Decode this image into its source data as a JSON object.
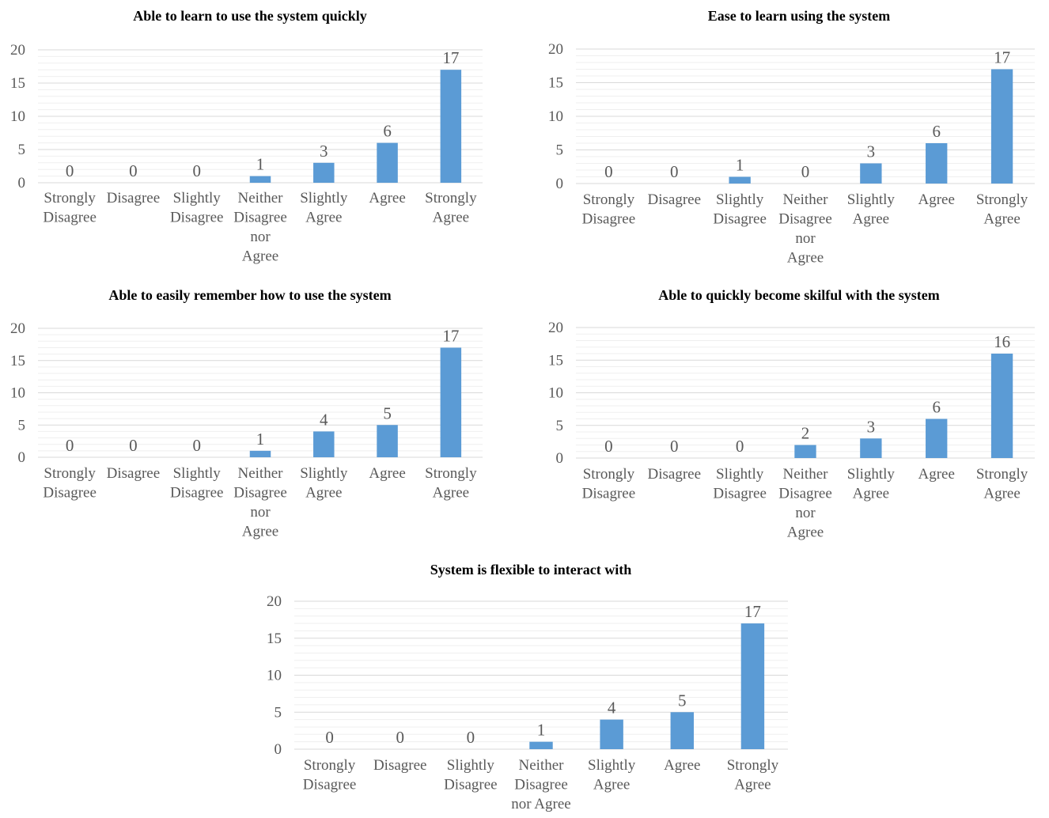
{
  "colors": {
    "bar": "#5b9bd5",
    "major_grid": "#d9d9d9",
    "minor_grid": "#efefef",
    "text": "#595959",
    "title": "#000000"
  },
  "chart_data": [
    {
      "type": "bar",
      "title": "Able to learn to use the system quickly",
      "categories": [
        [
          "Strongly",
          "Disagree"
        ],
        [
          "Disagree"
        ],
        [
          "Slightly",
          "Disagree"
        ],
        [
          "Neither",
          "Disagree",
          "nor",
          "Agree"
        ],
        [
          "Slightly",
          "Agree"
        ],
        [
          "Agree"
        ],
        [
          "Strongly",
          "Agree"
        ]
      ],
      "values": [
        0,
        0,
        0,
        1,
        3,
        6,
        17
      ],
      "ylim": [
        0,
        20
      ],
      "yticks": [
        0,
        5,
        10,
        15,
        20
      ],
      "xlabel": "",
      "ylabel": "",
      "grid": true,
      "data_labels": true
    },
    {
      "type": "bar",
      "title": "Ease to learn using the system",
      "categories": [
        [
          "Strongly",
          "Disagree"
        ],
        [
          "Disagree"
        ],
        [
          "Slightly",
          "Disagree"
        ],
        [
          "Neither",
          "Disagree",
          "nor",
          "Agree"
        ],
        [
          "Slightly",
          "Agree"
        ],
        [
          "Agree"
        ],
        [
          "Strongly",
          "Agree"
        ]
      ],
      "values": [
        0,
        0,
        1,
        0,
        3,
        6,
        17
      ],
      "ylim": [
        0,
        20
      ],
      "yticks": [
        0,
        5,
        10,
        15,
        20
      ],
      "xlabel": "",
      "ylabel": "",
      "grid": true,
      "data_labels": true
    },
    {
      "type": "bar",
      "title": "Able to easily remember how to use the system",
      "categories": [
        [
          "Strongly",
          "Disagree"
        ],
        [
          "Disagree"
        ],
        [
          "Slightly",
          "Disagree"
        ],
        [
          "Neither",
          "Disagree",
          "nor",
          "Agree"
        ],
        [
          "Slightly",
          "Agree"
        ],
        [
          "Agree"
        ],
        [
          "Strongly",
          "Agree"
        ]
      ],
      "values": [
        0,
        0,
        0,
        1,
        4,
        5,
        17
      ],
      "ylim": [
        0,
        20
      ],
      "yticks": [
        0,
        5,
        10,
        15,
        20
      ],
      "xlabel": "",
      "ylabel": "",
      "grid": true,
      "data_labels": true
    },
    {
      "type": "bar",
      "title": "Able to quickly become skilful with the system",
      "categories": [
        [
          "Strongly",
          "Disagree"
        ],
        [
          "Disagree"
        ],
        [
          "Slightly",
          "Disagree"
        ],
        [
          "Neither",
          "Disagree",
          "nor",
          "Agree"
        ],
        [
          "Slightly",
          "Agree"
        ],
        [
          "Agree"
        ],
        [
          "Strongly",
          "Agree"
        ]
      ],
      "values": [
        0,
        0,
        0,
        2,
        3,
        6,
        16
      ],
      "ylim": [
        0,
        20
      ],
      "yticks": [
        0,
        5,
        10,
        15,
        20
      ],
      "xlabel": "",
      "ylabel": "",
      "grid": true,
      "data_labels": true
    },
    {
      "type": "bar",
      "title": "System is flexible to interact with",
      "categories": [
        [
          "Strongly",
          "Disagree"
        ],
        [
          "Disagree"
        ],
        [
          "Slightly",
          "Disagree"
        ],
        [
          "Neither",
          "Disagree",
          "nor Agree"
        ],
        [
          "Slightly",
          "Agree"
        ],
        [
          "Agree"
        ],
        [
          "Strongly",
          "Agree"
        ]
      ],
      "values": [
        0,
        0,
        0,
        1,
        4,
        5,
        17
      ],
      "ylim": [
        0,
        20
      ],
      "yticks": [
        0,
        5,
        10,
        15,
        20
      ],
      "xlabel": "",
      "ylabel": "",
      "grid": true,
      "data_labels": true
    }
  ]
}
